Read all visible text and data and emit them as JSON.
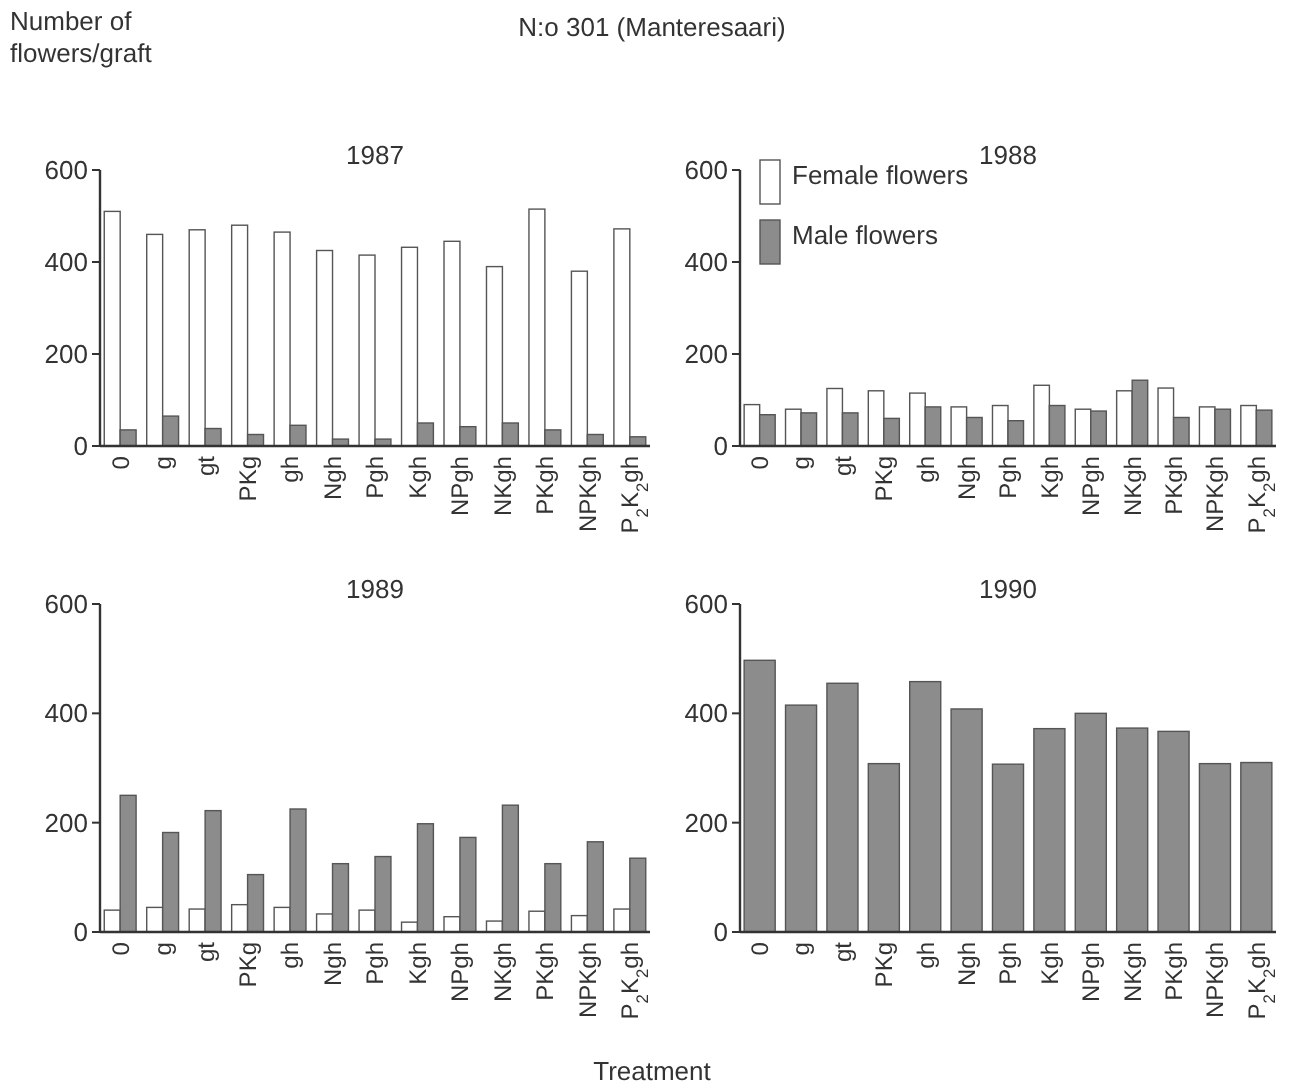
{
  "chart_data": [
    {
      "type": "bar",
      "title": "1987",
      "ylabel": "Number of flowers/graft",
      "annotations": [
        "N:o 301 (Manteresaari)"
      ],
      "categories": [
        "0",
        "g",
        "gt",
        "PKg",
        "gh",
        "Ngh",
        "Pgh",
        "Kgh",
        "NPgh",
        "NKgh",
        "PKgh",
        "NPKgh",
        "P$_{2}$K$_{2}$gh"
      ],
      "ylim": [
        0,
        600
      ],
      "yticks": [
        0,
        200,
        400,
        600
      ],
      "grid": false,
      "legend": false,
      "series": [
        {
          "color": "#ffffff",
          "values": [
            510,
            460,
            470,
            480,
            465,
            425,
            415,
            432,
            445,
            390,
            515,
            380,
            472
          ]
        },
        {
          "color": "#8c8c8c",
          "values": [
            35,
            65,
            38,
            25,
            45,
            15,
            15,
            50,
            42,
            50,
            35,
            25,
            20
          ]
        }
      ]
    },
    {
      "type": "bar",
      "title": "1988",
      "categories": [
        "0",
        "g",
        "gt",
        "PKg",
        "gh",
        "Ngh",
        "Pgh",
        "Kgh",
        "NPgh",
        "NKgh",
        "PKgh",
        "NPKgh",
        "P$_{2}$K$_{2}$gh"
      ],
      "ylim": [
        0,
        600
      ],
      "yticks": [
        0,
        200,
        400,
        600
      ],
      "grid": false,
      "legend": "top left",
      "series": [
        {
          "name": "Female flowers",
          "color": "#ffffff",
          "values": [
            90,
            80,
            125,
            120,
            115,
            85,
            88,
            132,
            80,
            120,
            126,
            85,
            88
          ]
        },
        {
          "name": "Male flowers",
          "color": "#8c8c8c",
          "values": [
            68,
            72,
            72,
            60,
            85,
            62,
            55,
            88,
            76,
            143,
            62,
            80,
            78
          ]
        }
      ]
    },
    {
      "type": "bar",
      "title": "1989",
      "xlabel": "Treatment",
      "categories": [
        "0",
        "g",
        "gt",
        "PKg",
        "gh",
        "Ngh",
        "Pgh",
        "Kgh",
        "NPgh",
        "NKgh",
        "PKgh",
        "NPKgh",
        "P$_{2}$K$_{2}$gh"
      ],
      "ylim": [
        0,
        600
      ],
      "yticks": [
        0,
        200,
        400,
        600
      ],
      "grid": false,
      "legend": false,
      "series": [
        {
          "color": "#ffffff",
          "values": [
            40,
            45,
            42,
            50,
            45,
            33,
            40,
            18,
            28,
            20,
            38,
            30,
            42
          ]
        },
        {
          "color": "#8c8c8c",
          "values": [
            250,
            182,
            222,
            105,
            225,
            125,
            138,
            198,
            173,
            232,
            125,
            165,
            135
          ]
        }
      ]
    },
    {
      "type": "bar",
      "title": "1990",
      "categories": [
        "0",
        "g",
        "gt",
        "PKg",
        "gh",
        "Ngh",
        "Pgh",
        "Kgh",
        "NPgh",
        "NKgh",
        "PKgh",
        "NPKgh",
        "P$_{2}$K$_{2}$gh"
      ],
      "ylim": [
        0,
        600
      ],
      "yticks": [
        0,
        200,
        400,
        600
      ],
      "grid": false,
      "legend": false,
      "series": [
        {
          "color": "#8c8c8c",
          "values": [
            497,
            415,
            455,
            308,
            458,
            408,
            307,
            372,
            400,
            373,
            367,
            308,
            310
          ]
        }
      ]
    }
  ]
}
